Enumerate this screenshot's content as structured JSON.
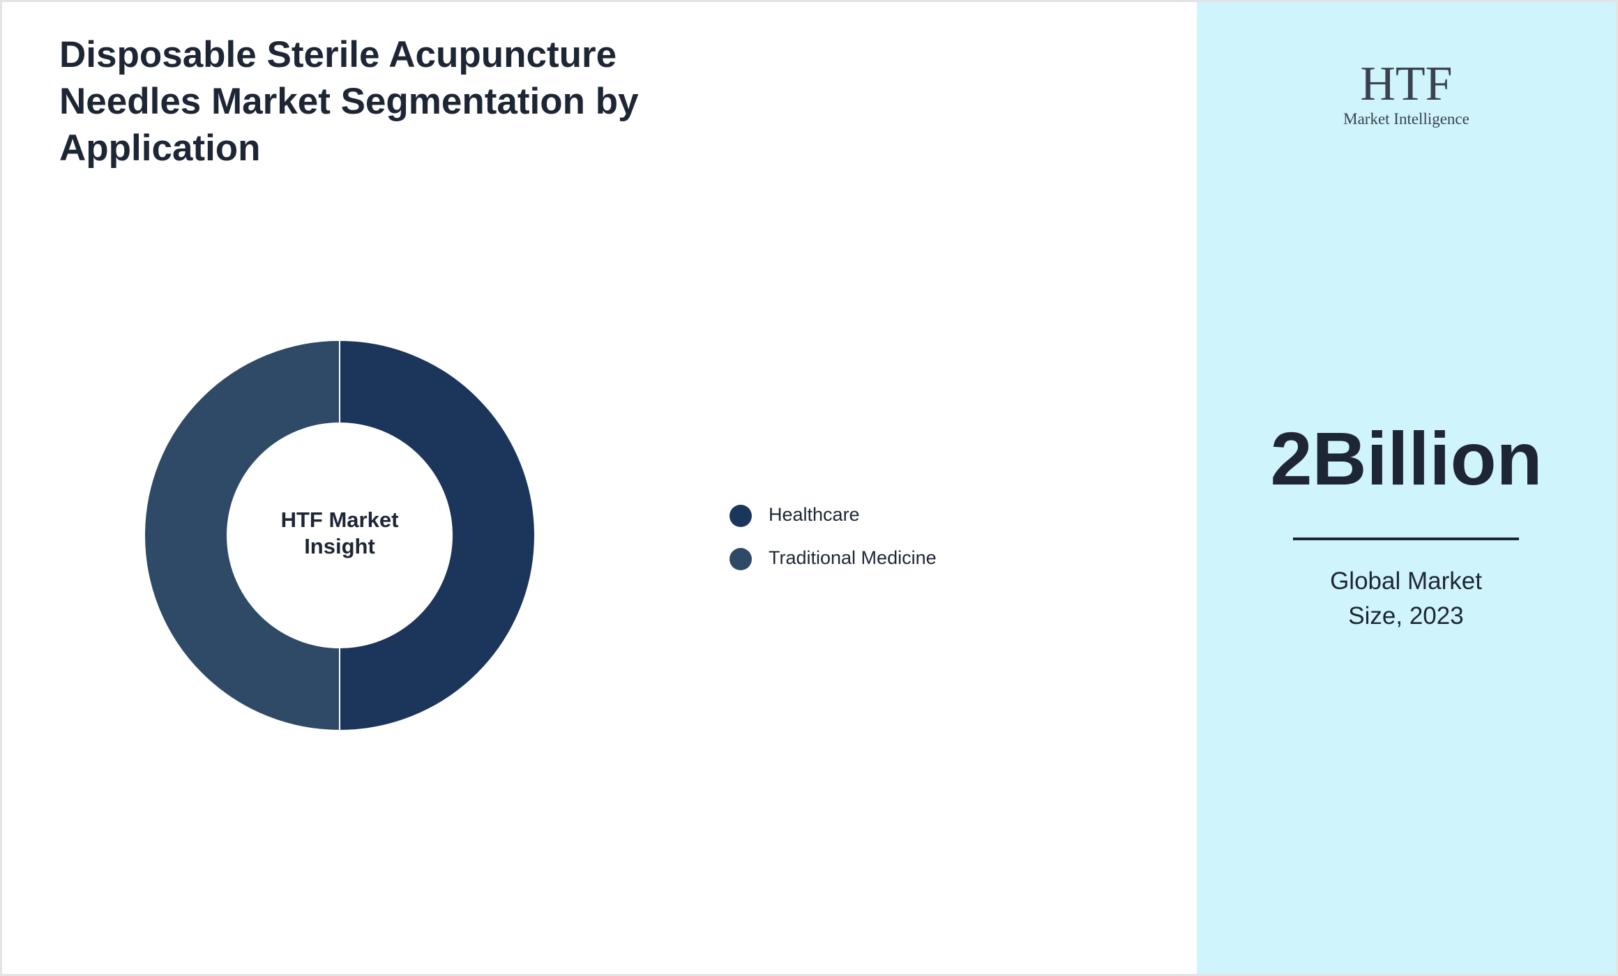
{
  "chart_data": {
    "type": "donut",
    "title": "Disposable Sterile Acupuncture Needles Market Segmentation by Application",
    "center_label": "HTF Market Insight",
    "categories": [
      "Healthcare",
      "Traditional Medicine"
    ],
    "values": [
      50,
      50
    ],
    "colors": [
      "#1b355b",
      "#2e4a66"
    ],
    "legend": "right"
  },
  "side_panel": {
    "logo": {
      "name": "HTF",
      "tagline": "Market Intelligence"
    },
    "market_size": "2Billion",
    "caption": "Global Market Size, 2023"
  }
}
